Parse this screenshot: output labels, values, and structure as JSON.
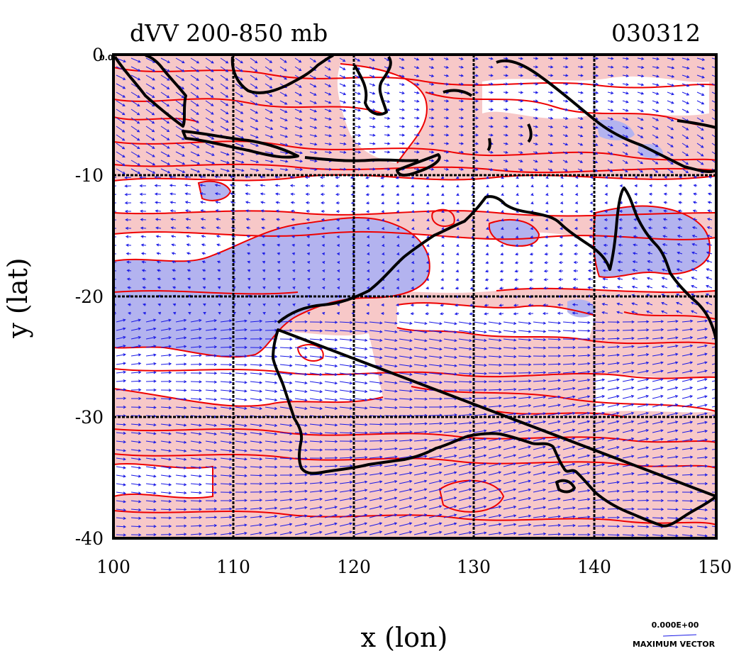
{
  "plot": {
    "title_left": "dVV 200-850 mb",
    "title_right": "030312",
    "xlabel": "x (lon)",
    "ylabel": "y (lat)",
    "x_ticks": [
      "100",
      "110",
      "120",
      "130",
      "140",
      "150"
    ],
    "y_ticks": [
      "0",
      "-10",
      "-20",
      "-30",
      "-40"
    ],
    "corner_label": "0.0",
    "vector_scale_value": "0.000E+00",
    "vector_scale_label": "MAXIMUM VECTOR"
  },
  "map_data": {
    "lon_range": [
      100,
      150
    ],
    "lat_range": [
      -40,
      0
    ],
    "grid_lon": [
      110,
      120,
      130,
      140
    ],
    "grid_lat": [
      -10,
      -20,
      -30
    ],
    "colors": {
      "positive_fill": "#f7c8c8",
      "negative_fill": "#b3b3ef",
      "contour": "#ee0000",
      "vector": "#1a1ae6",
      "coastline": "#000000",
      "grid": "#000000"
    }
  }
}
